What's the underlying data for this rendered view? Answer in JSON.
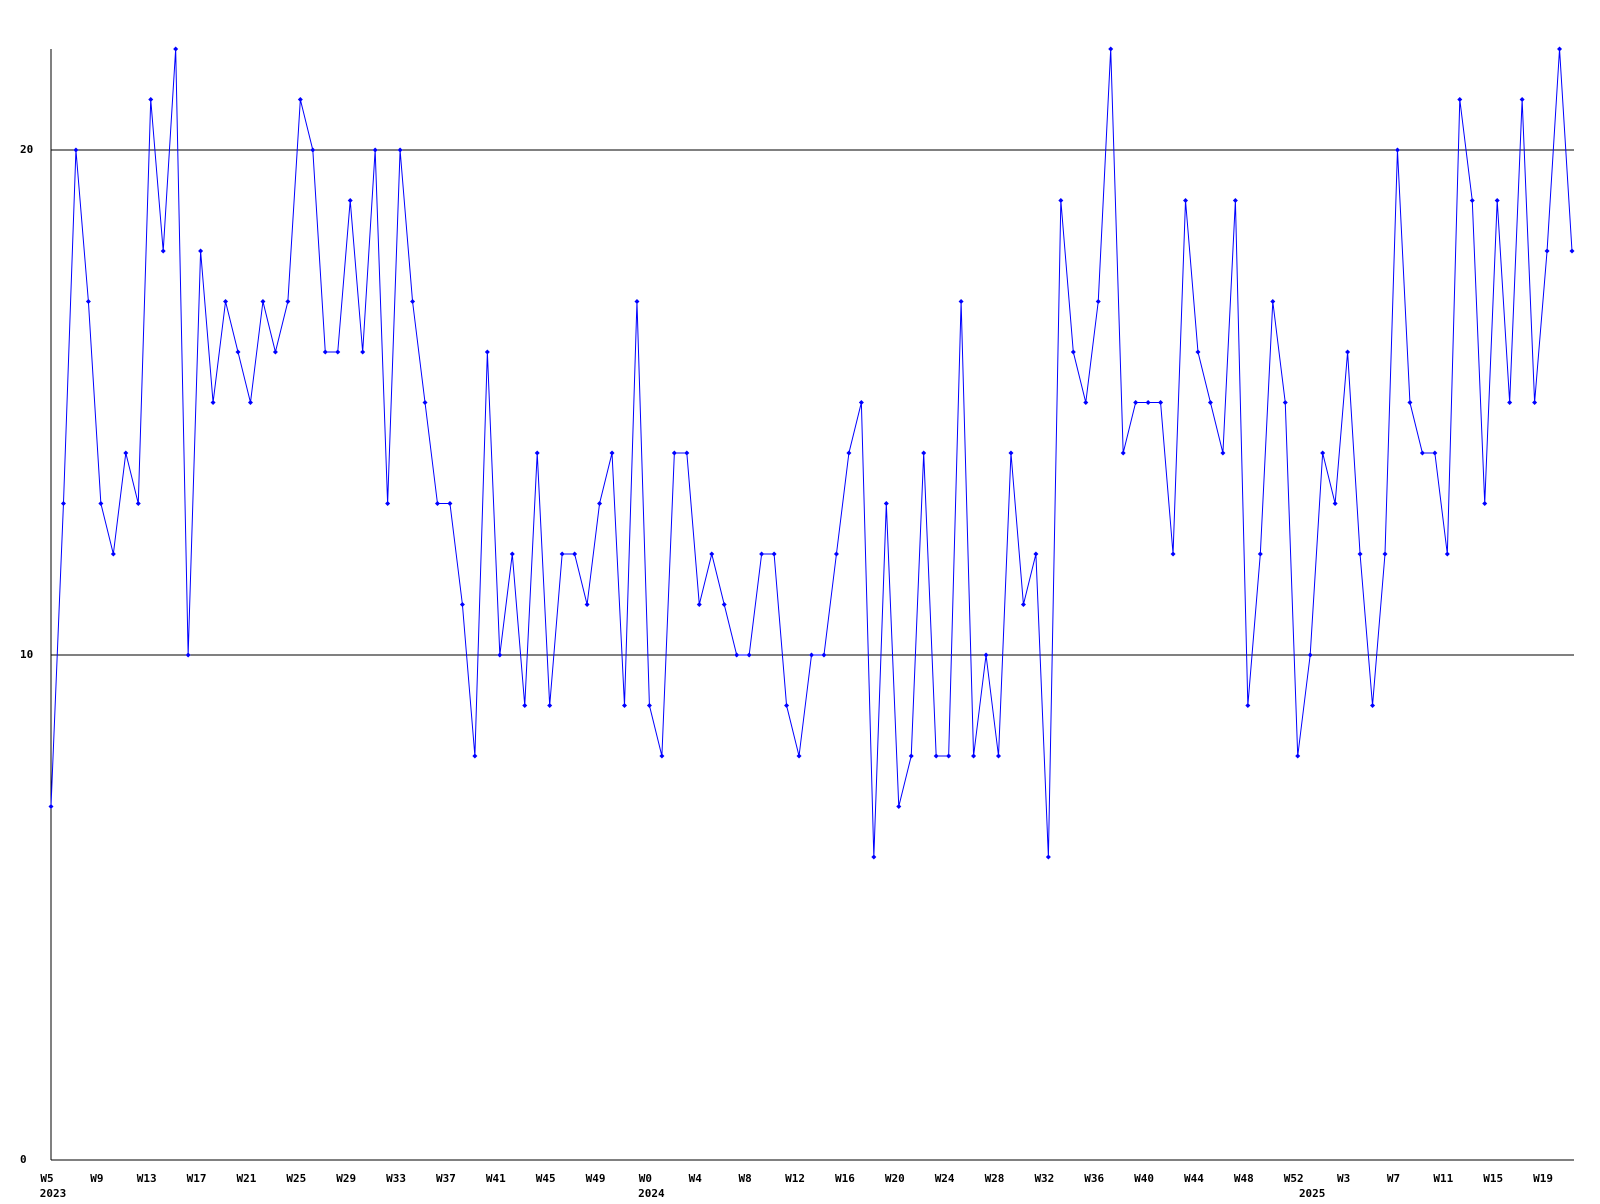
{
  "chart_data": {
    "type": "line",
    "categories": [
      "W5",
      null,
      null,
      null,
      "W9",
      null,
      null,
      null,
      "W13",
      null,
      null,
      null,
      "W17",
      null,
      null,
      null,
      "W21",
      null,
      null,
      null,
      "W25",
      null,
      null,
      null,
      "W29",
      null,
      null,
      null,
      "W33",
      null,
      null,
      null,
      "W37",
      null,
      null,
      null,
      "W41",
      null,
      null,
      null,
      "W45",
      null,
      null,
      null,
      "W49",
      null,
      null,
      null,
      "W0",
      null,
      null,
      null,
      "W4",
      null,
      null,
      null,
      "W8",
      null,
      null,
      null,
      "W12",
      null,
      null,
      null,
      "W16",
      null,
      null,
      null,
      "W20",
      null,
      null,
      null,
      "W24",
      null,
      null,
      null,
      "W28",
      null,
      null,
      null,
      "W32",
      null,
      null,
      null,
      "W36",
      null,
      null,
      null,
      "W40",
      null,
      null,
      null,
      "W44",
      null,
      null,
      null,
      "W48",
      null,
      null,
      null,
      "W52",
      null,
      null,
      null,
      "W3",
      null,
      null,
      null,
      "W7",
      null,
      null,
      null,
      "W11",
      null,
      null,
      null,
      "W15",
      null,
      null,
      null,
      "W19",
      null,
      null
    ],
    "category_years": [
      "2023",
      null,
      null,
      null,
      null,
      null,
      null,
      null,
      null,
      null,
      null,
      null,
      null,
      null,
      null,
      null,
      null,
      null,
      null,
      null,
      null,
      null,
      null,
      null,
      null,
      null,
      null,
      null,
      null,
      null,
      null,
      null,
      null,
      null,
      null,
      null,
      null,
      null,
      null,
      null,
      null,
      null,
      null,
      null,
      null,
      null,
      null,
      null,
      "2024",
      null,
      null,
      null,
      null,
      null,
      null,
      null,
      null,
      null,
      null,
      null,
      null,
      null,
      null,
      null,
      null,
      null,
      null,
      null,
      null,
      null,
      null,
      null,
      null,
      null,
      null,
      null,
      null,
      null,
      null,
      null,
      null,
      null,
      null,
      null,
      null,
      null,
      null,
      null,
      null,
      null,
      null,
      null,
      null,
      null,
      null,
      null,
      null,
      null,
      null,
      null,
      null,
      "2025",
      null,
      null,
      null,
      null,
      null,
      null,
      null,
      null,
      null,
      null,
      null,
      null,
      null,
      null,
      null,
      null,
      null,
      null,
      null,
      null,
      null
    ],
    "series": [
      {
        "color": "#0000ff",
        "values": [
          7,
          13,
          20,
          17,
          13,
          12,
          14,
          13,
          21,
          18,
          22,
          10,
          18,
          15,
          17,
          16,
          15,
          17,
          16,
          17,
          21,
          20,
          16,
          16,
          19,
          16,
          20,
          13,
          20,
          17,
          15,
          13,
          13,
          11,
          8,
          16,
          10,
          12,
          9,
          14,
          9,
          12,
          12,
          11,
          13,
          14,
          9,
          17,
          9,
          8,
          14,
          14,
          11,
          12,
          11,
          10,
          10,
          12,
          12,
          9,
          8,
          10,
          10,
          12,
          14,
          15,
          6,
          13,
          7,
          8,
          14,
          8,
          8,
          17,
          8,
          10,
          8,
          14,
          11,
          12,
          6,
          19,
          16,
          15,
          17,
          22,
          14,
          15,
          15,
          15,
          12,
          19,
          16,
          15,
          14,
          19,
          9,
          12,
          17,
          15,
          8,
          10,
          14,
          13,
          16,
          12,
          9,
          12,
          20,
          15,
          14,
          14,
          12,
          21,
          19,
          13,
          19,
          15,
          21,
          15,
          18,
          22,
          18
        ]
      }
    ],
    "ylim": [
      0,
      22
    ],
    "yticks": [
      0,
      10,
      20
    ],
    "grid": true
  }
}
